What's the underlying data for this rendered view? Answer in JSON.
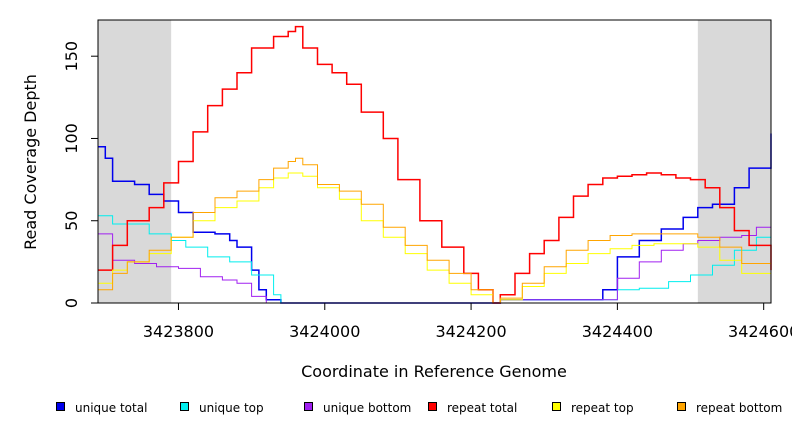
{
  "chart_data": {
    "type": "line",
    "xlabel": "Coordinate in Reference Genome",
    "ylabel": "Read Coverage Depth",
    "xlim": [
      3423690,
      3424610
    ],
    "ylim": [
      0,
      172
    ],
    "xticks": [
      3423800,
      3424000,
      3424200,
      3424400,
      3424600
    ],
    "xtick_labels": [
      "3423800",
      "3424000",
      "3424200",
      "3424400",
      "3424600"
    ],
    "yticks": [
      0,
      50,
      100,
      150
    ],
    "ytick_labels": [
      "0",
      "50",
      "100",
      "150"
    ],
    "shaded_regions": [
      [
        3423690,
        3423790
      ],
      [
        3424510,
        3424610
      ]
    ],
    "shade_color": "#d9d9d9",
    "legend_position": "bottom",
    "series": [
      {
        "name": "unique total",
        "color": "#0000ee",
        "x": [
          3423690,
          3423700,
          3423710,
          3423740,
          3423760,
          3423780,
          3423800,
          3423820,
          3423850,
          3423870,
          3423880,
          3423900,
          3423910,
          3423920,
          3423940,
          3424000,
          3424200,
          3424230,
          3424240,
          3424370,
          3424380,
          3424400,
          3424430,
          3424460,
          3424490,
          3424510,
          3424530,
          3424560,
          3424580,
          3424610
        ],
        "y": [
          95,
          88,
          74,
          72,
          66,
          62,
          55,
          43,
          42,
          38,
          34,
          20,
          8,
          2,
          0,
          0,
          0,
          0,
          2,
          2,
          8,
          28,
          38,
          45,
          52,
          58,
          60,
          70,
          82,
          103
        ]
      },
      {
        "name": "unique top",
        "color": "#00eeee",
        "x": [
          3423690,
          3423710,
          3423760,
          3423790,
          3423810,
          3423840,
          3423870,
          3423900,
          3423930,
          3423940,
          3424000,
          3424230,
          3424240,
          3424390,
          3424400,
          3424430,
          3424470,
          3424500,
          3424530,
          3424560,
          3424590,
          3424610
        ],
        "y": [
          53,
          48,
          42,
          38,
          34,
          28,
          25,
          17,
          5,
          0,
          0,
          0,
          2,
          2,
          8,
          9,
          13,
          17,
          23,
          32,
          40,
          52
        ]
      },
      {
        "name": "unique bottom",
        "color": "#a020f0",
        "x": [
          3423690,
          3423710,
          3423740,
          3423770,
          3423800,
          3423830,
          3423860,
          3423880,
          3423900,
          3423920,
          3424000,
          3424230,
          3424240,
          3424380,
          3424400,
          3424430,
          3424460,
          3424490,
          3424510,
          3424540,
          3424570,
          3424590,
          3424610
        ],
        "y": [
          42,
          26,
          24,
          22,
          21,
          16,
          14,
          12,
          4,
          0,
          0,
          0,
          2,
          2,
          15,
          25,
          32,
          36,
          38,
          40,
          41,
          46,
          55
        ]
      },
      {
        "name": "repeat total",
        "color": "#ff0000",
        "x": [
          3423690,
          3423710,
          3423730,
          3423760,
          3423780,
          3423800,
          3423820,
          3423840,
          3423860,
          3423880,
          3423900,
          3423930,
          3423950,
          3423960,
          3423970,
          3423990,
          3424010,
          3424030,
          3424050,
          3424080,
          3424100,
          3424130,
          3424160,
          3424190,
          3424210,
          3424230,
          3424240,
          3424260,
          3424280,
          3424300,
          3424320,
          3424340,
          3424360,
          3424380,
          3424400,
          3424420,
          3424440,
          3424460,
          3424480,
          3424500,
          3424520,
          3424540,
          3424560,
          3424580,
          3424610
        ],
        "y": [
          20,
          35,
          50,
          58,
          73,
          86,
          104,
          120,
          130,
          140,
          155,
          162,
          165,
          168,
          155,
          145,
          140,
          133,
          116,
          100,
          75,
          50,
          34,
          18,
          8,
          0,
          5,
          18,
          30,
          38,
          52,
          65,
          72,
          76,
          77,
          78,
          79,
          78,
          76,
          75,
          70,
          58,
          44,
          35,
          20
        ]
      },
      {
        "name": "repeat top",
        "color": "#ffff00",
        "x": [
          3423690,
          3423710,
          3423730,
          3423760,
          3423790,
          3423820,
          3423850,
          3423880,
          3423910,
          3423930,
          3423950,
          3423970,
          3423990,
          3424020,
          3424050,
          3424080,
          3424110,
          3424140,
          3424170,
          3424200,
          3424230,
          3424240,
          3424270,
          3424300,
          3424330,
          3424360,
          3424390,
          3424420,
          3424450,
          3424480,
          3424510,
          3424540,
          3424570,
          3424610
        ],
        "y": [
          12,
          20,
          25,
          30,
          40,
          50,
          58,
          62,
          70,
          76,
          79,
          77,
          70,
          63,
          50,
          40,
          30,
          20,
          12,
          5,
          0,
          2,
          10,
          18,
          24,
          30,
          33,
          35,
          36,
          36,
          34,
          26,
          18,
          12
        ]
      },
      {
        "name": "repeat bottom",
        "color": "#ffa500",
        "x": [
          3423690,
          3423710,
          3423730,
          3423760,
          3423790,
          3423820,
          3423850,
          3423880,
          3423910,
          3423930,
          3423950,
          3423960,
          3423970,
          3423990,
          3424020,
          3424050,
          3424080,
          3424110,
          3424140,
          3424170,
          3424200,
          3424230,
          3424240,
          3424270,
          3424300,
          3424330,
          3424360,
          3424390,
          3424420,
          3424450,
          3424480,
          3424510,
          3424540,
          3424570,
          3424610
        ],
        "y": [
          8,
          18,
          25,
          32,
          40,
          55,
          64,
          68,
          75,
          82,
          86,
          88,
          84,
          72,
          68,
          60,
          46,
          35,
          26,
          18,
          8,
          0,
          3,
          12,
          22,
          32,
          38,
          41,
          42,
          42,
          42,
          40,
          34,
          24,
          8
        ]
      }
    ]
  }
}
